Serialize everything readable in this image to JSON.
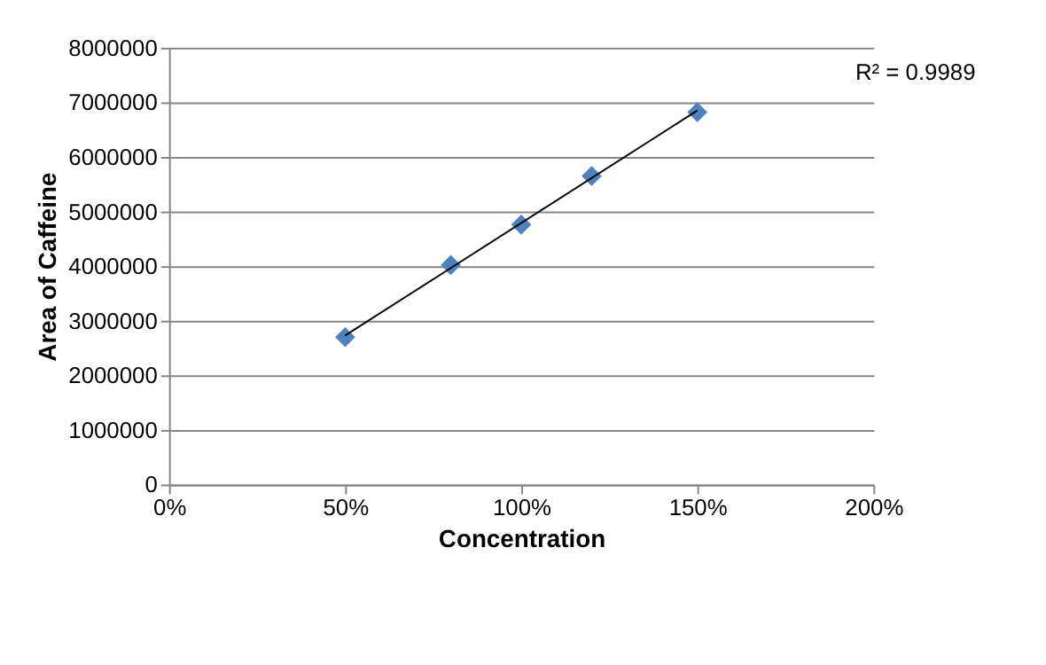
{
  "chart_data": {
    "type": "scatter",
    "xlabel": "Concentration",
    "ylabel": "Area of Caffeine",
    "x": [
      50,
      80,
      100,
      120,
      150
    ],
    "series": [
      {
        "color": "#4f81bd",
        "marker": "diamond",
        "values": [
          2700000,
          4020000,
          4760000,
          5650000,
          6820000
        ]
      },
      {
        "type": "line",
        "color": "#000000",
        "marker": "none",
        "x": [
          50,
          150
        ],
        "values": [
          2730000,
          6850000
        ]
      }
    ],
    "xlim": [
      0,
      200
    ],
    "xticks": [
      {
        "value": 0,
        "label": "0%"
      },
      {
        "value": 50,
        "label": "50%"
      },
      {
        "value": 100,
        "label": "100%"
      },
      {
        "value": 150,
        "label": "150%"
      },
      {
        "value": 200,
        "label": "200%"
      }
    ],
    "ylim": [
      0,
      8000000
    ],
    "yticks": [
      0,
      1000000,
      2000000,
      3000000,
      4000000,
      5000000,
      6000000,
      7000000,
      8000000
    ],
    "grid": "y",
    "annotations": [
      "R² = 0.9989"
    ]
  }
}
